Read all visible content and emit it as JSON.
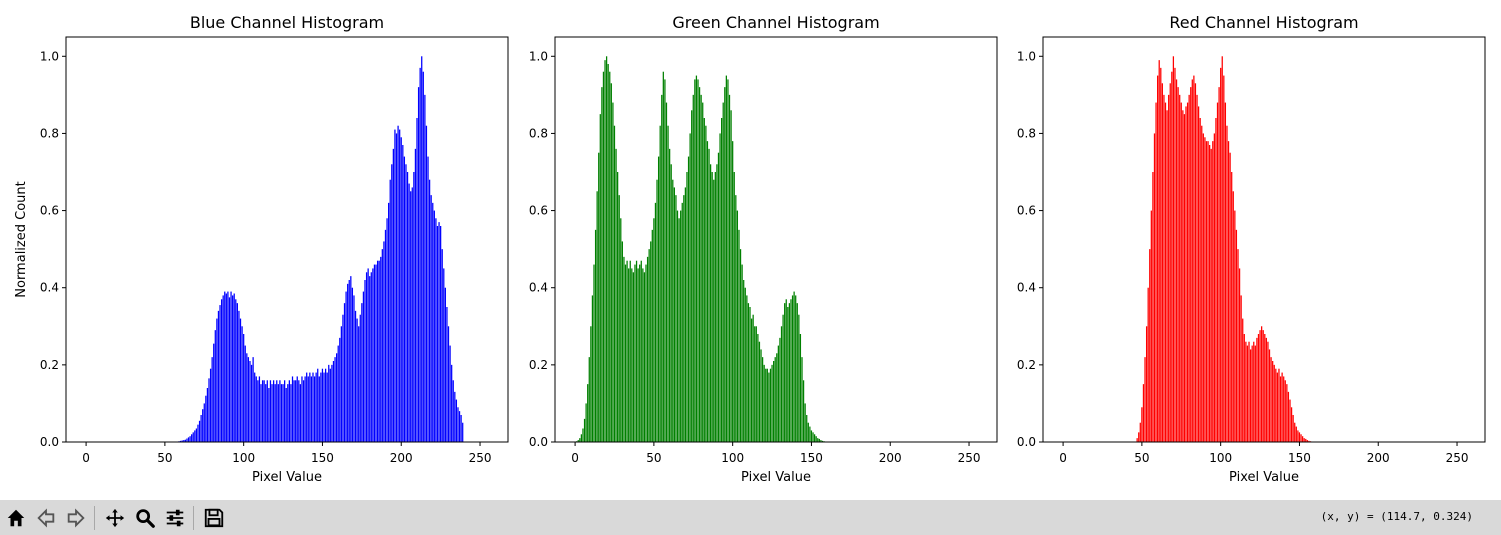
{
  "toolbar": {
    "buttons": [
      {
        "name": "home-button",
        "icon": "home-icon"
      },
      {
        "name": "back-button",
        "icon": "back-arrow-icon"
      },
      {
        "name": "forward-button",
        "icon": "forward-arrow-icon"
      },
      {
        "name": "pan-button",
        "icon": "move-icon"
      },
      {
        "name": "zoom-button",
        "icon": "magnifier-icon"
      },
      {
        "name": "configure-subplots-button",
        "icon": "sliders-icon"
      },
      {
        "name": "save-button",
        "icon": "floppy-icon"
      }
    ],
    "coords_text": "(x, y) = (114.7, 0.324)"
  },
  "chart_data": [
    {
      "type": "bar",
      "title": "Blue Channel Histogram",
      "xlabel": "Pixel Value",
      "ylabel": "Normalized Count",
      "color": "#0000ff",
      "xlim": [
        -12.75,
        267.75
      ],
      "ylim": [
        0,
        1.05
      ],
      "xticks": [
        0,
        50,
        100,
        150,
        200,
        250
      ],
      "yticks": [
        0.0,
        0.2,
        0.4,
        0.6,
        0.8,
        1.0
      ],
      "xtick_labels": [
        "0",
        "50",
        "100",
        "150",
        "200",
        "250"
      ],
      "ytick_labels": [
        "0.0",
        "0.2",
        "0.4",
        "0.6",
        "0.8",
        "1.0"
      ],
      "x_start": 0,
      "values": [
        0,
        0,
        0,
        0,
        0,
        0,
        0,
        0,
        0,
        0,
        0,
        0,
        0,
        0,
        0,
        0,
        0,
        0,
        0,
        0,
        0,
        0,
        0,
        0,
        0,
        0,
        0,
        0,
        0,
        0,
        0,
        0,
        0,
        0,
        0,
        0,
        0,
        0,
        0,
        0,
        0,
        0,
        0,
        0,
        0,
        0,
        0,
        0,
        0,
        0,
        0,
        0,
        0,
        0,
        0,
        0,
        0,
        0,
        0,
        0.002,
        0.003,
        0.004,
        0.005,
        0.006,
        0.009,
        0.012,
        0.015,
        0.02,
        0.025,
        0.03,
        0.035,
        0.045,
        0.055,
        0.07,
        0.085,
        0.1,
        0.12,
        0.14,
        0.165,
        0.19,
        0.22,
        0.255,
        0.29,
        0.32,
        0.34,
        0.355,
        0.37,
        0.38,
        0.39,
        0.385,
        0.39,
        0.375,
        0.39,
        0.38,
        0.385,
        0.37,
        0.36,
        0.34,
        0.32,
        0.3,
        0.28,
        0.25,
        0.23,
        0.22,
        0.21,
        0.2,
        0.22,
        0.18,
        0.17,
        0.16,
        0.17,
        0.15,
        0.16,
        0.16,
        0.15,
        0.16,
        0.14,
        0.16,
        0.15,
        0.16,
        0.15,
        0.16,
        0.15,
        0.16,
        0.15,
        0.15,
        0.16,
        0.14,
        0.15,
        0.16,
        0.15,
        0.17,
        0.16,
        0.16,
        0.17,
        0.16,
        0.15,
        0.17,
        0.16,
        0.17,
        0.18,
        0.17,
        0.18,
        0.17,
        0.18,
        0.17,
        0.18,
        0.19,
        0.17,
        0.18,
        0.19,
        0.18,
        0.19,
        0.18,
        0.2,
        0.19,
        0.2,
        0.21,
        0.22,
        0.23,
        0.25,
        0.27,
        0.3,
        0.33,
        0.36,
        0.39,
        0.41,
        0.42,
        0.43,
        0.4,
        0.38,
        0.34,
        0.32,
        0.3,
        0.33,
        0.36,
        0.39,
        0.42,
        0.44,
        0.45,
        0.43,
        0.44,
        0.45,
        0.46,
        0.46,
        0.47,
        0.47,
        0.48,
        0.5,
        0.52,
        0.55,
        0.58,
        0.62,
        0.68,
        0.72,
        0.76,
        0.81,
        0.8,
        0.82,
        0.81,
        0.79,
        0.77,
        0.74,
        0.72,
        0.7,
        0.67,
        0.65,
        0.66,
        0.7,
        0.76,
        0.84,
        0.92,
        0.97,
        1.0,
        0.96,
        0.9,
        0.82,
        0.74,
        0.68,
        0.64,
        0.62,
        0.6,
        0.58,
        0.56,
        0.57,
        0.56,
        0.5,
        0.45,
        0.4,
        0.35,
        0.3,
        0.25,
        0.2,
        0.16,
        0.13,
        0.11,
        0.09,
        0.08,
        0.07,
        0.05
      ]
    },
    {
      "type": "bar",
      "title": "Green Channel Histogram",
      "xlabel": "Pixel Value",
      "ylabel": "",
      "color": "#008000",
      "xlim": [
        -12.75,
        267.75
      ],
      "ylim": [
        0,
        1.05
      ],
      "xticks": [
        0,
        50,
        100,
        150,
        200,
        250
      ],
      "yticks": [
        0.0,
        0.2,
        0.4,
        0.6,
        0.8,
        1.0
      ],
      "xtick_labels": [
        "0",
        "50",
        "100",
        "150",
        "200",
        "250"
      ],
      "ytick_labels": [
        "0.0",
        "0.2",
        "0.4",
        "0.6",
        "0.8",
        "1.0"
      ],
      "x_start": 0,
      "values": [
        0,
        0.002,
        0.005,
        0.01,
        0.02,
        0.035,
        0.06,
        0.1,
        0.15,
        0.22,
        0.3,
        0.38,
        0.46,
        0.55,
        0.65,
        0.75,
        0.85,
        0.92,
        0.96,
        0.99,
        1.0,
        0.98,
        0.96,
        0.93,
        0.88,
        0.82,
        0.76,
        0.7,
        0.64,
        0.58,
        0.52,
        0.48,
        0.46,
        0.47,
        0.45,
        0.47,
        0.45,
        0.44,
        0.46,
        0.47,
        0.45,
        0.46,
        0.47,
        0.45,
        0.44,
        0.46,
        0.48,
        0.5,
        0.52,
        0.55,
        0.58,
        0.62,
        0.68,
        0.74,
        0.82,
        0.9,
        0.96,
        0.94,
        0.88,
        0.82,
        0.76,
        0.72,
        0.68,
        0.66,
        0.64,
        0.6,
        0.58,
        0.6,
        0.62,
        0.64,
        0.66,
        0.7,
        0.74,
        0.8,
        0.86,
        0.9,
        0.94,
        0.95,
        0.94,
        0.92,
        0.9,
        0.88,
        0.84,
        0.82,
        0.78,
        0.76,
        0.72,
        0.7,
        0.68,
        0.7,
        0.72,
        0.75,
        0.8,
        0.84,
        0.88,
        0.92,
        0.95,
        0.94,
        0.9,
        0.86,
        0.78,
        0.7,
        0.64,
        0.6,
        0.55,
        0.5,
        0.46,
        0.42,
        0.4,
        0.38,
        0.36,
        0.35,
        0.32,
        0.33,
        0.3,
        0.3,
        0.28,
        0.26,
        0.24,
        0.22,
        0.2,
        0.19,
        0.19,
        0.18,
        0.19,
        0.2,
        0.21,
        0.22,
        0.23,
        0.25,
        0.27,
        0.3,
        0.33,
        0.36,
        0.37,
        0.35,
        0.36,
        0.37,
        0.38,
        0.39,
        0.38,
        0.36,
        0.33,
        0.28,
        0.22,
        0.16,
        0.1,
        0.07,
        0.05,
        0.04,
        0.03,
        0.025,
        0.02,
        0.015,
        0.01,
        0.008,
        0.005,
        0.003,
        0.002,
        0.001
      ]
    },
    {
      "type": "bar",
      "title": "Red Channel Histogram",
      "xlabel": "Pixel Value",
      "ylabel": "",
      "color": "#ff0000",
      "xlim": [
        -12.75,
        267.75
      ],
      "ylim": [
        0,
        1.05
      ],
      "xticks": [
        0,
        50,
        100,
        150,
        200,
        250
      ],
      "yticks": [
        0.0,
        0.2,
        0.4,
        0.6,
        0.8,
        1.0
      ],
      "xtick_labels": [
        "0",
        "50",
        "100",
        "150",
        "200",
        "250"
      ],
      "ytick_labels": [
        "0.0",
        "0.2",
        "0.4",
        "0.6",
        "0.8",
        "1.0"
      ],
      "x_start": 0,
      "values": [
        0,
        0,
        0,
        0,
        0,
        0,
        0,
        0,
        0,
        0,
        0,
        0,
        0,
        0,
        0,
        0,
        0,
        0,
        0,
        0,
        0,
        0,
        0,
        0,
        0,
        0,
        0,
        0,
        0,
        0,
        0,
        0,
        0,
        0,
        0,
        0,
        0,
        0,
        0,
        0,
        0,
        0,
        0,
        0,
        0,
        0,
        0,
        0.01,
        0.025,
        0.05,
        0.09,
        0.15,
        0.22,
        0.3,
        0.4,
        0.5,
        0.6,
        0.7,
        0.8,
        0.88,
        0.95,
        0.99,
        0.97,
        0.93,
        0.9,
        0.88,
        0.86,
        0.9,
        0.93,
        0.96,
        1.0,
        0.97,
        0.94,
        0.92,
        0.9,
        0.88,
        0.86,
        0.85,
        0.87,
        0.88,
        0.9,
        0.92,
        0.94,
        0.95,
        0.93,
        0.9,
        0.87,
        0.84,
        0.82,
        0.8,
        0.79,
        0.78,
        0.78,
        0.77,
        0.76,
        0.78,
        0.8,
        0.84,
        0.88,
        0.92,
        0.97,
        1.0,
        0.95,
        0.88,
        0.82,
        0.78,
        0.75,
        0.7,
        0.65,
        0.6,
        0.55,
        0.5,
        0.45,
        0.38,
        0.32,
        0.28,
        0.26,
        0.25,
        0.26,
        0.24,
        0.25,
        0.26,
        0.25,
        0.27,
        0.28,
        0.29,
        0.3,
        0.29,
        0.28,
        0.27,
        0.26,
        0.24,
        0.22,
        0.21,
        0.2,
        0.19,
        0.18,
        0.19,
        0.17,
        0.18,
        0.17,
        0.16,
        0.15,
        0.13,
        0.11,
        0.09,
        0.07,
        0.05,
        0.04,
        0.03,
        0.025,
        0.02,
        0.015,
        0.01,
        0.008,
        0.005,
        0.003,
        0.002,
        0.001
      ]
    }
  ]
}
